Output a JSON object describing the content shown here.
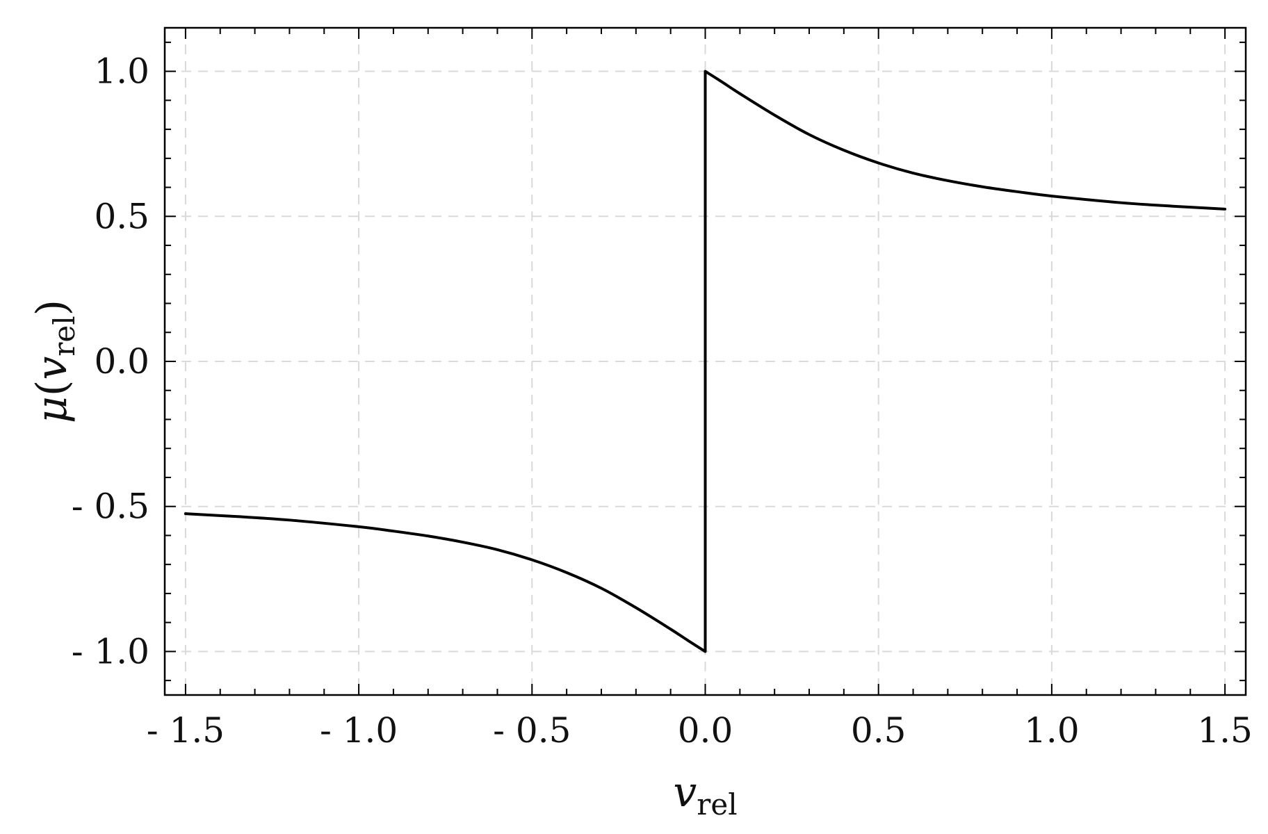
{
  "chart_data": {
    "type": "line",
    "title": "",
    "xlabel": {
      "main": "v",
      "sub": "rel"
    },
    "ylabel": {
      "prefix": "μ",
      "open": "(",
      "var": "v",
      "sub": "rel",
      "close": ")"
    },
    "xlim": [
      -1.56,
      1.56
    ],
    "ylim": [
      -1.15,
      1.15
    ],
    "x_ticks": [
      -1.5,
      -1.0,
      -0.5,
      0.0,
      0.5,
      1.0,
      1.5
    ],
    "x_tick_labels": [
      "- 1.5",
      "- 1.0",
      "- 0.5",
      "0.0",
      "0.5",
      "1.0",
      "1.5"
    ],
    "y_ticks": [
      1.0,
      0.5,
      0.0,
      -0.5,
      -1.0
    ],
    "y_tick_labels": [
      "1.0",
      "0.5",
      "0.0",
      "- 0.5",
      "- 1.0"
    ],
    "grid": true,
    "grid_style": "dashed",
    "line_color": "#000000",
    "grid_color": "#d9d9d9",
    "series": [
      {
        "x": [
          -1.5,
          -1.35,
          -1.2,
          -1.0,
          -0.9,
          -0.8,
          -0.7,
          -0.6,
          -0.5,
          -0.4,
          -0.3,
          -0.2,
          -0.1,
          -0.05,
          0.0,
          0.0,
          0.05,
          0.1,
          0.2,
          0.3,
          0.4,
          0.5,
          0.6,
          0.7,
          0.8,
          0.9,
          1.0,
          1.2,
          1.35,
          1.5
        ],
        "y": [
          -0.525,
          -0.535,
          -0.547,
          -0.57,
          -0.585,
          -0.602,
          -0.623,
          -0.649,
          -0.684,
          -0.728,
          -0.782,
          -0.849,
          -0.923,
          -0.962,
          -1.0,
          1.0,
          0.962,
          0.923,
          0.849,
          0.782,
          0.728,
          0.684,
          0.649,
          0.623,
          0.602,
          0.585,
          0.57,
          0.547,
          0.535,
          0.525
        ]
      }
    ]
  }
}
